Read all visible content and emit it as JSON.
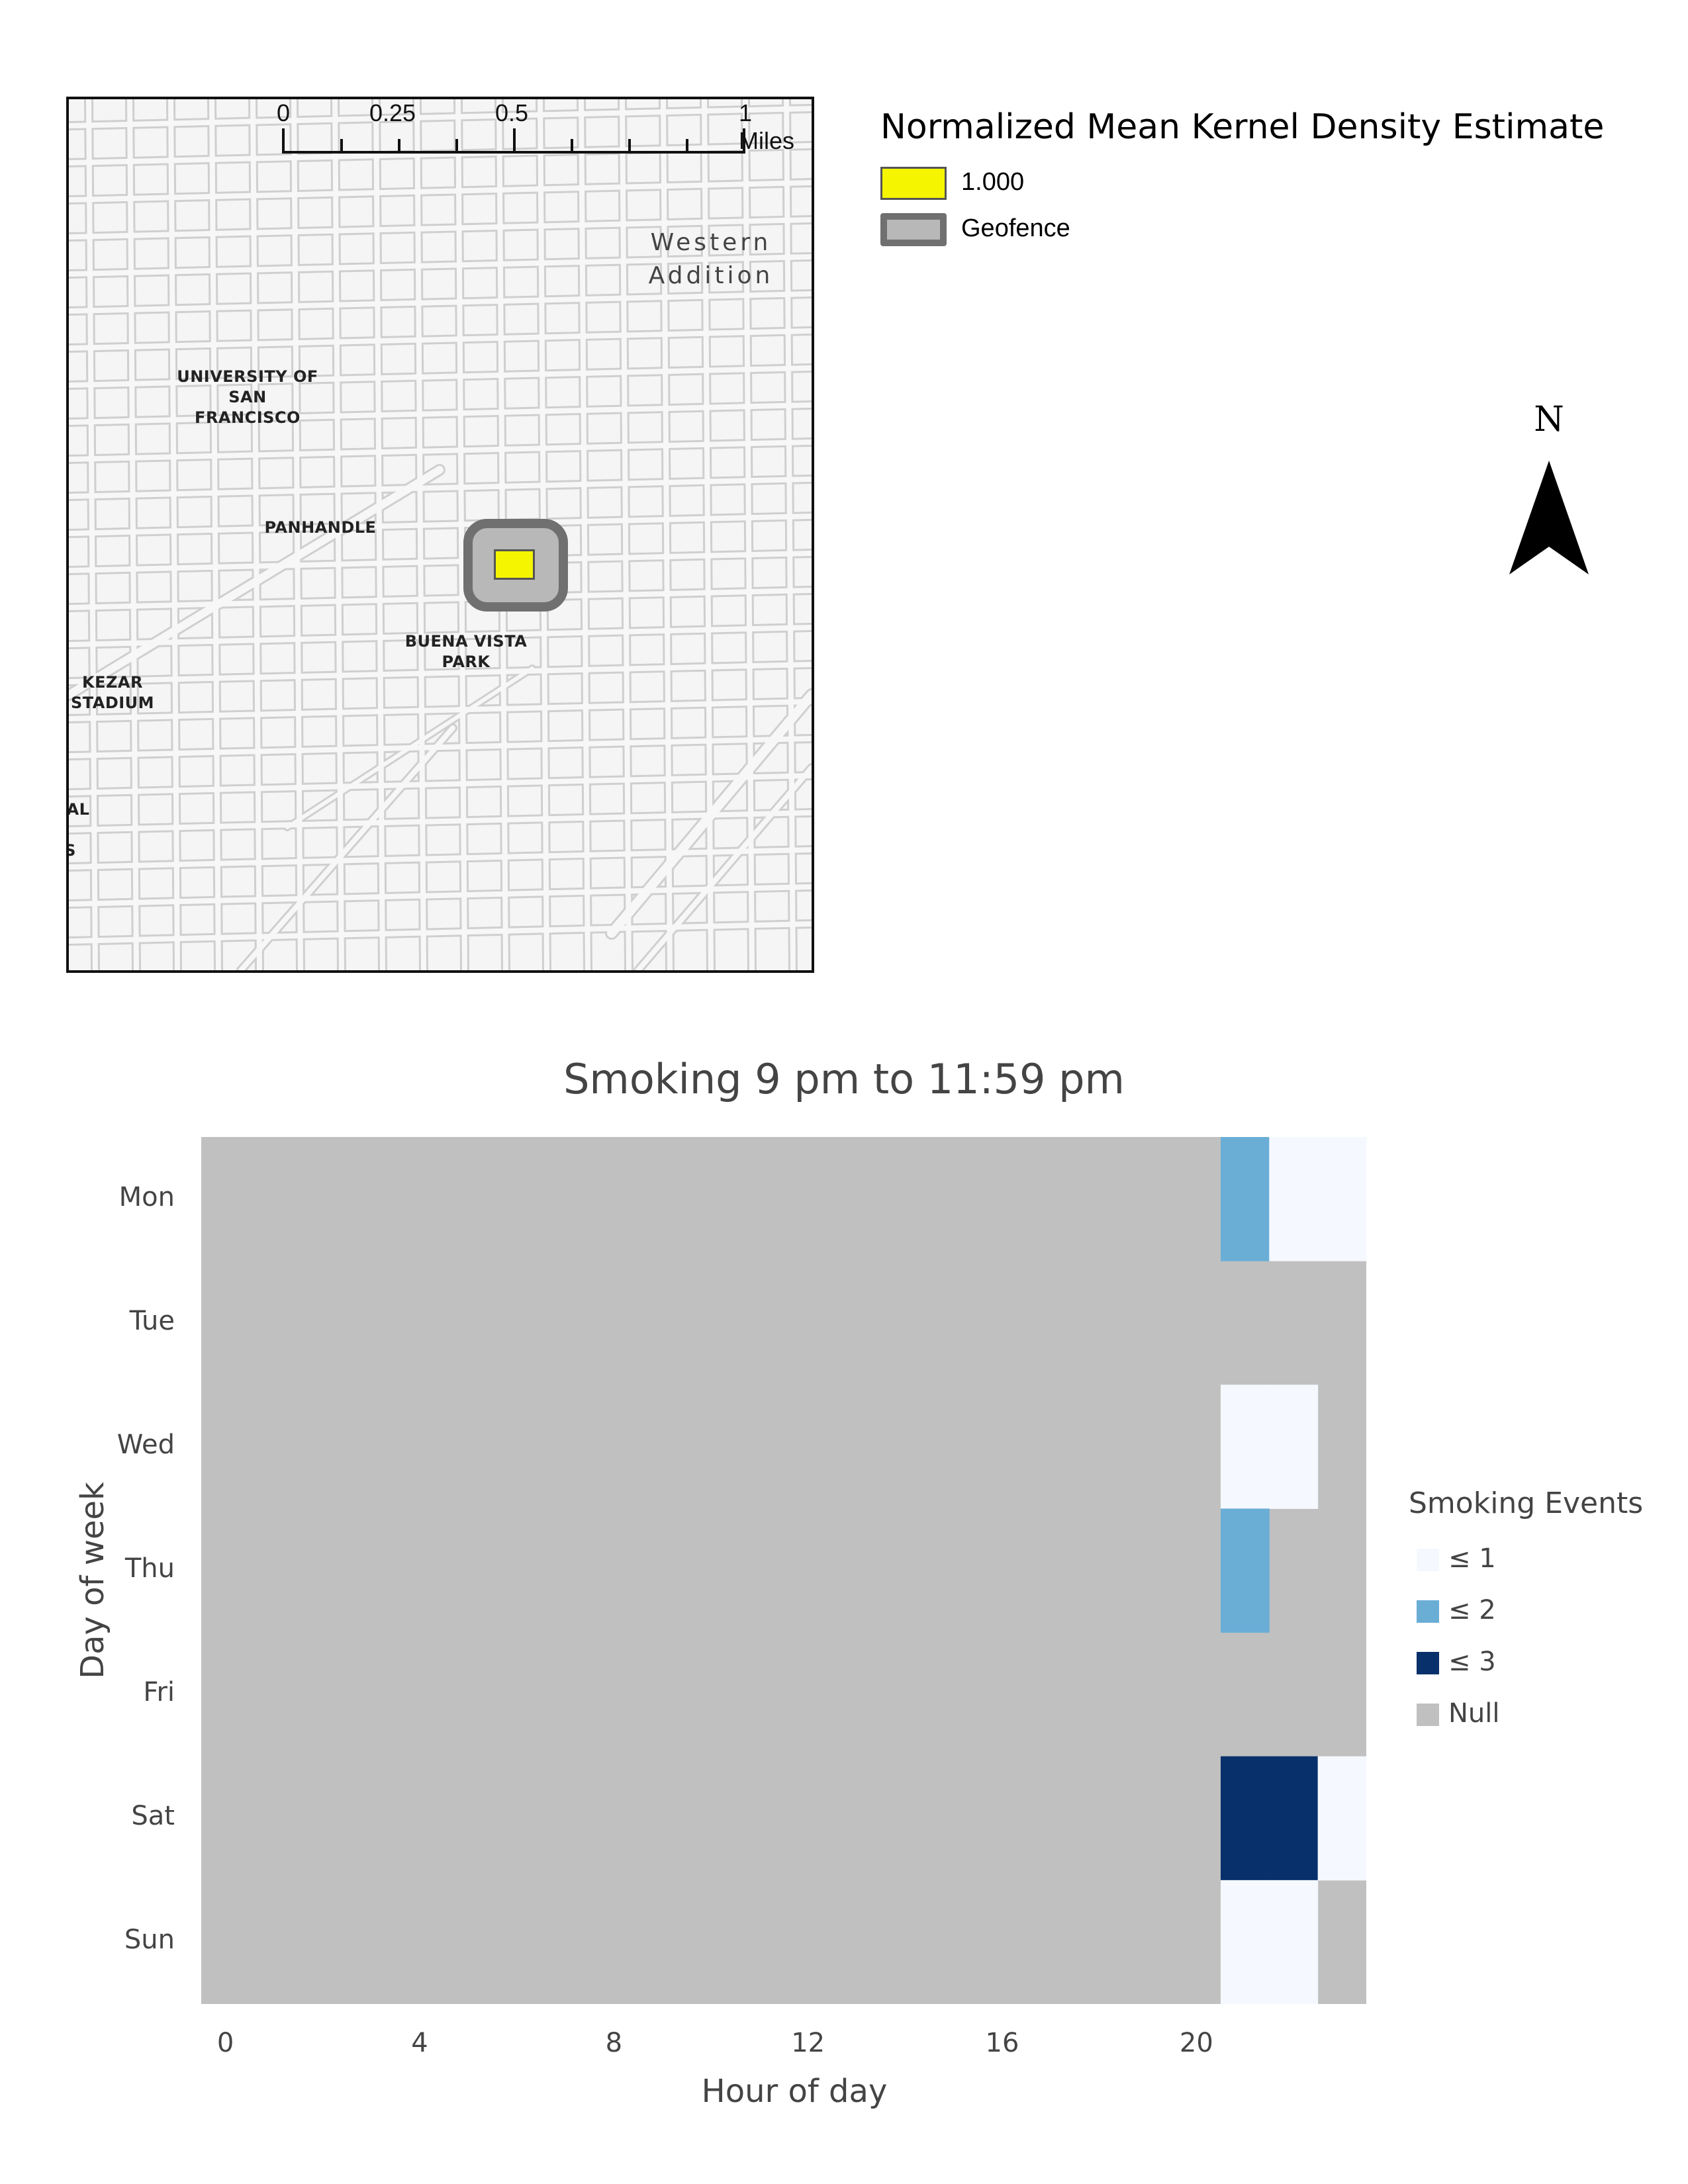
{
  "map": {
    "scale_labels": [
      "0",
      "0.25",
      "0.5",
      "1 Miles"
    ],
    "places": [
      {
        "name": "university",
        "text": "UNIVERSITY OF\nSAN\nFRANCISCO"
      },
      {
        "name": "panhandle",
        "text": "PANHANDLE"
      },
      {
        "name": "buena-vista",
        "text": "BUENA VISTA\nPARK"
      },
      {
        "name": "kezar",
        "text": "KEZAR\nSTADIUM"
      },
      {
        "name": "partial-al",
        "text": "AL"
      },
      {
        "name": "partial-s",
        "text": "S"
      }
    ],
    "neighborhood": "Western\nAddition",
    "legend": {
      "title": "Normalized Mean Kernel Density Estimate",
      "items": [
        {
          "label": "1.000",
          "fill": "#f5f500",
          "border": "#555555"
        },
        {
          "label": "Geofence",
          "fill": "#b8b8b8",
          "border": "#707070"
        }
      ]
    },
    "north": "N"
  },
  "chart_data": {
    "type": "heatmap",
    "title": "Smoking 9 pm to 11:59 pm",
    "xlabel": "Hour of day",
    "ylabel": "Day of week",
    "x_ticks": [
      0,
      4,
      8,
      12,
      16,
      20
    ],
    "xlim": [
      0,
      24
    ],
    "rows": [
      "Mon",
      "Tue",
      "Wed",
      "Thu",
      "Fri",
      "Sat",
      "Sun"
    ],
    "null_color": "#c0c0c0",
    "color_scale": [
      {
        "label": "≤ 1",
        "max": 1,
        "color": "#f5f9ff"
      },
      {
        "label": "≤ 2",
        "max": 2,
        "color": "#6aaed6"
      },
      {
        "label": "≤ 3",
        "max": 3,
        "color": "#08306b"
      },
      {
        "label": "Null",
        "max": null,
        "color": "#c0c0c0"
      }
    ],
    "legend_title": "Smoking Events",
    "cells": [
      {
        "day": "Mon",
        "hour": 21,
        "value": 2
      },
      {
        "day": "Mon",
        "hour": 22,
        "value": 1
      },
      {
        "day": "Mon",
        "hour": 23,
        "value": 1
      },
      {
        "day": "Wed",
        "hour": 21,
        "value": 1
      },
      {
        "day": "Wed",
        "hour": 22,
        "value": 1
      },
      {
        "day": "Thu",
        "hour": 21,
        "value": 2
      },
      {
        "day": "Sat",
        "hour": 21,
        "value": 3
      },
      {
        "day": "Sat",
        "hour": 22,
        "value": 3
      },
      {
        "day": "Sat",
        "hour": 23,
        "value": 1
      },
      {
        "day": "Sun",
        "hour": 21,
        "value": 1
      },
      {
        "day": "Sun",
        "hour": 22,
        "value": 1
      }
    ]
  }
}
